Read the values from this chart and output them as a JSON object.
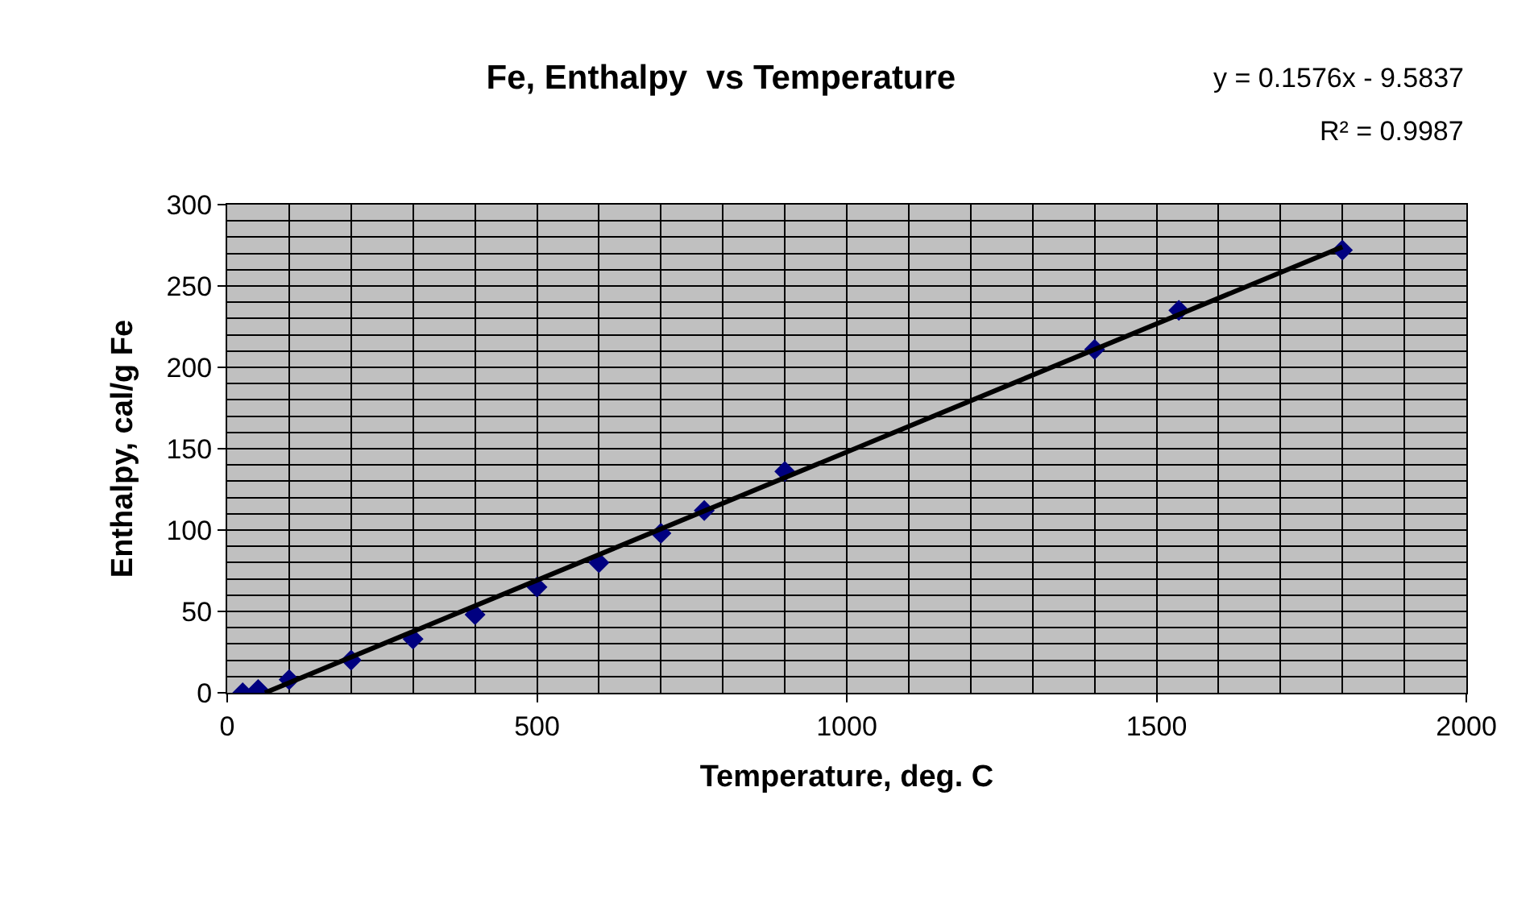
{
  "chart_data": {
    "type": "scatter",
    "title": "Fe, Enthalpy  vs Temperature",
    "xlabel": "Temperature, deg. C",
    "ylabel": "Enthalpy, cal/g Fe",
    "annotations": [
      "y = 0.1576x - 9.5837",
      "R² = 0.9987"
    ],
    "series": [
      {
        "color": "#000080",
        "marker": "diamond",
        "x": [
          25,
          50,
          100,
          200,
          300,
          400,
          500,
          600,
          700,
          770,
          900,
          1400,
          1536,
          1800
        ],
        "values": [
          0,
          2,
          8,
          20,
          33,
          48,
          65,
          80,
          98,
          112,
          136,
          211,
          235,
          272
        ]
      },
      {
        "type": "line",
        "color": "#000000",
        "marker": "none",
        "line_style": "solid",
        "x": [
          61,
          1800
        ],
        "values": [
          0,
          274
        ]
      }
    ],
    "xlim": [
      0,
      2000
    ],
    "xticks": [
      0,
      500,
      1000,
      1500,
      2000
    ],
    "ylim": [
      0,
      300
    ],
    "yticks": [
      0,
      50,
      100,
      150,
      200,
      250,
      300
    ],
    "grid": true
  }
}
